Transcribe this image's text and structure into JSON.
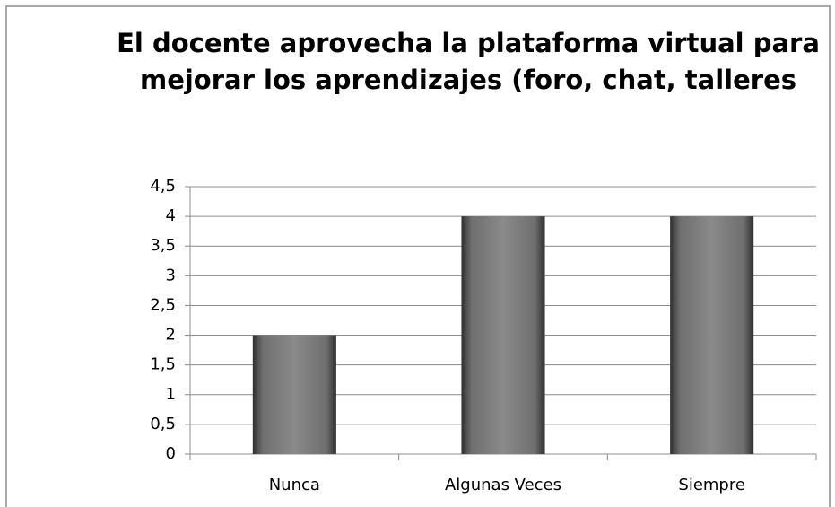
{
  "chart_data": {
    "type": "bar",
    "title": [
      "El docente aprovecha la plataforma virtual para",
      "mejorar los aprendizajes (foro, chat, talleres"
    ],
    "categories": [
      "Nunca",
      "Algunas Veces",
      "Siempre"
    ],
    "values": [
      2,
      4,
      4
    ],
    "color": "#7f7f7f",
    "ylim": [
      0,
      4.5
    ],
    "yticks": [
      0,
      {
        "value": 0.5,
        "label": "0,5"
      },
      1,
      {
        "value": 1.5,
        "label": "1,5"
      },
      2,
      {
        "value": 2.5,
        "label": "2,5"
      },
      3,
      {
        "value": 3.5,
        "label": "3,5"
      },
      4,
      {
        "value": 4.5,
        "label": "4,5"
      }
    ],
    "grid": true
  }
}
